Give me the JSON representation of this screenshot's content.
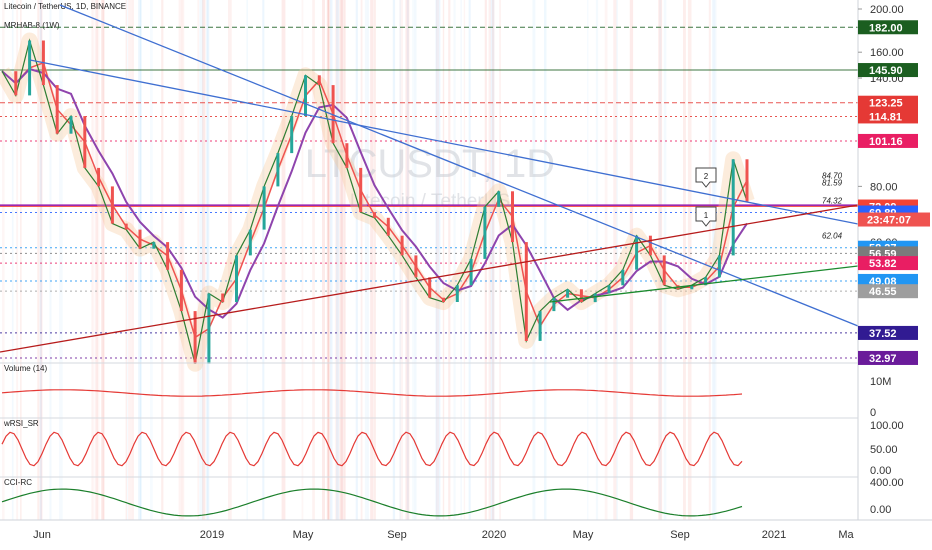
{
  "chart_data": {
    "type": "line",
    "header": "Litecoin / TetherUS, 1D, BINANCE",
    "indicator_label": "MRHAB-8 (1W)",
    "watermark_symbol": "LTCUSDT, 1D",
    "watermark_name": "Litecoin / TetherUS",
    "main_yaxis_ticks": [
      "200.00",
      "160.00",
      "140.00",
      "120.00",
      "100.00",
      "80.00",
      "60.00"
    ],
    "xaxis_ticks": [
      "Jun",
      "2019",
      "May",
      "Sep",
      "2020",
      "May",
      "Sep",
      "2021",
      "Ma"
    ],
    "ylim": [
      32,
      205
    ],
    "price_levels": [
      {
        "label": "182.00",
        "value": 182.0,
        "color": "#1b5e20",
        "line": "dashed"
      },
      {
        "label": "145.90",
        "value": 145.9,
        "color": "#1b5e20",
        "line": "solid"
      },
      {
        "label": "123.25",
        "value": 123.25,
        "color": "#e53935",
        "line": "dashed"
      },
      {
        "label": "114.81",
        "value": 114.81,
        "color": "#e53935",
        "line": "dotted"
      },
      {
        "label": "101.16",
        "value": 101.16,
        "color": "#e91e63",
        "line": "dotted"
      },
      {
        "label": "72.09",
        "value": 72.09,
        "color": "#f44336",
        "line": "solid"
      },
      {
        "label": "69.89",
        "value": 69.89,
        "color": "#2962ff",
        "line": "dotted"
      },
      {
        "label": "58.27",
        "value": 58.27,
        "color": "#2196f3",
        "line": "dotted"
      },
      {
        "label": "56.59",
        "value": 56.59,
        "color": "#7b7b7b",
        "line": "dotted"
      },
      {
        "label": "53.82",
        "value": 53.82,
        "color": "#e91e63",
        "line": "dotted"
      },
      {
        "label": "49.08",
        "value": 49.08,
        "color": "#2196f3",
        "line": "dotted"
      },
      {
        "label": "46.55",
        "value": 46.55,
        "color": "#9e9e9e",
        "line": "dotted"
      },
      {
        "label": "37.52",
        "value": 37.52,
        "color": "#311b92",
        "line": "dotted"
      },
      {
        "label": "32.97",
        "value": 32.97,
        "color": "#6a1b9a",
        "line": "dotted"
      }
    ],
    "countdown_label": "23:47:07",
    "trendline_labels": [
      {
        "text": "84.70",
        "value": 84.7
      },
      {
        "text": "81.59",
        "value": 81.59
      },
      {
        "text": "74.32",
        "value": 74.32
      },
      {
        "text": "62.04",
        "value": 62.04
      }
    ],
    "purple_level": 72.6,
    "callouts": [
      "1",
      "2"
    ],
    "price_series": [
      {
        "x": 0,
        "y": 145
      },
      {
        "x": 0.5,
        "y": 128
      },
      {
        "x": 1,
        "y": 170
      },
      {
        "x": 1.5,
        "y": 135
      },
      {
        "x": 2,
        "y": 105
      },
      {
        "x": 2.5,
        "y": 115
      },
      {
        "x": 3,
        "y": 88
      },
      {
        "x": 3.5,
        "y": 80
      },
      {
        "x": 4,
        "y": 66
      },
      {
        "x": 4.5,
        "y": 64
      },
      {
        "x": 5,
        "y": 58
      },
      {
        "x": 5.5,
        "y": 60
      },
      {
        "x": 6,
        "y": 52
      },
      {
        "x": 6.5,
        "y": 42
      },
      {
        "x": 7,
        "y": 32
      },
      {
        "x": 7.5,
        "y": 46
      },
      {
        "x": 8,
        "y": 44
      },
      {
        "x": 8.5,
        "y": 56
      },
      {
        "x": 9,
        "y": 64
      },
      {
        "x": 9.5,
        "y": 80
      },
      {
        "x": 10,
        "y": 95
      },
      {
        "x": 10.5,
        "y": 115
      },
      {
        "x": 11,
        "y": 142
      },
      {
        "x": 11.5,
        "y": 135
      },
      {
        "x": 12,
        "y": 100
      },
      {
        "x": 12.5,
        "y": 88
      },
      {
        "x": 13,
        "y": 70
      },
      {
        "x": 13.5,
        "y": 68
      },
      {
        "x": 14,
        "y": 62
      },
      {
        "x": 14.5,
        "y": 56
      },
      {
        "x": 15,
        "y": 50
      },
      {
        "x": 15.5,
        "y": 45
      },
      {
        "x": 16,
        "y": 44
      },
      {
        "x": 16.5,
        "y": 48
      },
      {
        "x": 17,
        "y": 55
      },
      {
        "x": 17.5,
        "y": 72
      },
      {
        "x": 18,
        "y": 78
      },
      {
        "x": 18.5,
        "y": 60
      },
      {
        "x": 19,
        "y": 36
      },
      {
        "x": 19.5,
        "y": 42
      },
      {
        "x": 20,
        "y": 45
      },
      {
        "x": 20.5,
        "y": 47
      },
      {
        "x": 21,
        "y": 44
      },
      {
        "x": 21.5,
        "y": 46
      },
      {
        "x": 22,
        "y": 48
      },
      {
        "x": 22.5,
        "y": 52
      },
      {
        "x": 23,
        "y": 62
      },
      {
        "x": 23.5,
        "y": 56
      },
      {
        "x": 24,
        "y": 48
      },
      {
        "x": 24.5,
        "y": 47
      },
      {
        "x": 25,
        "y": 48
      },
      {
        "x": 25.5,
        "y": 50
      },
      {
        "x": 26,
        "y": 56
      },
      {
        "x": 26.5,
        "y": 92
      },
      {
        "x": 27,
        "y": 74
      }
    ],
    "volume_panel": {
      "label": "Volume (14)",
      "ticks": [
        "10M",
        "0"
      ]
    },
    "rsi_panel": {
      "label": "wRSI_SR",
      "ticks": [
        "100.00",
        "50.00",
        "0.00"
      ]
    },
    "cci_panel": {
      "label": "CCI-RC",
      "ticks": [
        "400.00",
        "0.00"
      ]
    }
  }
}
